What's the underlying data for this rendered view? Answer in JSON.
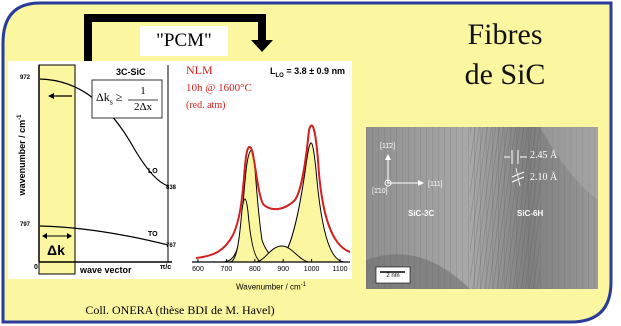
{
  "slide": {
    "background_color": "#fbf6a0",
    "border_color": "#2a3c9a",
    "banner_label": "\"PCM\"",
    "title_line1": "Fibres",
    "title_line2": "de SiC",
    "credit": "Coll. ONERA (thèse BDI de M. Havel)"
  },
  "dispersion_panel": {
    "box_label": "3C-SiC",
    "formula_lhs": "Δk",
    "formula_sub": "s",
    "formula_geq": "≥",
    "formula_num": "1",
    "formula_den": "2Δx",
    "ylabel": "wavenumber / cm",
    "ylabel_sup": "-1",
    "xlabel": "wave vector",
    "delta_k": "Δk",
    "branch_lo": "LO",
    "branch_to": "TO",
    "val_972": "972",
    "val_838": "838",
    "val_797": "797",
    "val_767": "767",
    "origin": "0",
    "pi_a": "π/c"
  },
  "raman_panel": {
    "sample": "NLM",
    "anneal": "10h @ 1600°C",
    "atm": "(red. atm)",
    "llo_prefix": "L",
    "llo_sub": "LO",
    "llo_value": " = 3.8 ± 0.9 nm",
    "xlabel": "Wavenumber / cm",
    "xlabel_sup": "-1",
    "ticks": [
      "600",
      "700",
      "800",
      "900",
      "1000",
      "1100"
    ],
    "spectrum_color": "#d42020"
  },
  "tem_panel": {
    "dir1": "[11̄2]",
    "dir2": "[1̄10]",
    "dir3": "[111]",
    "d1": "2.45 Å",
    "d2": "2.10 Å",
    "phase1": "SiC-3C",
    "phase2": "SiC-6H",
    "scale": "2 nm"
  }
}
